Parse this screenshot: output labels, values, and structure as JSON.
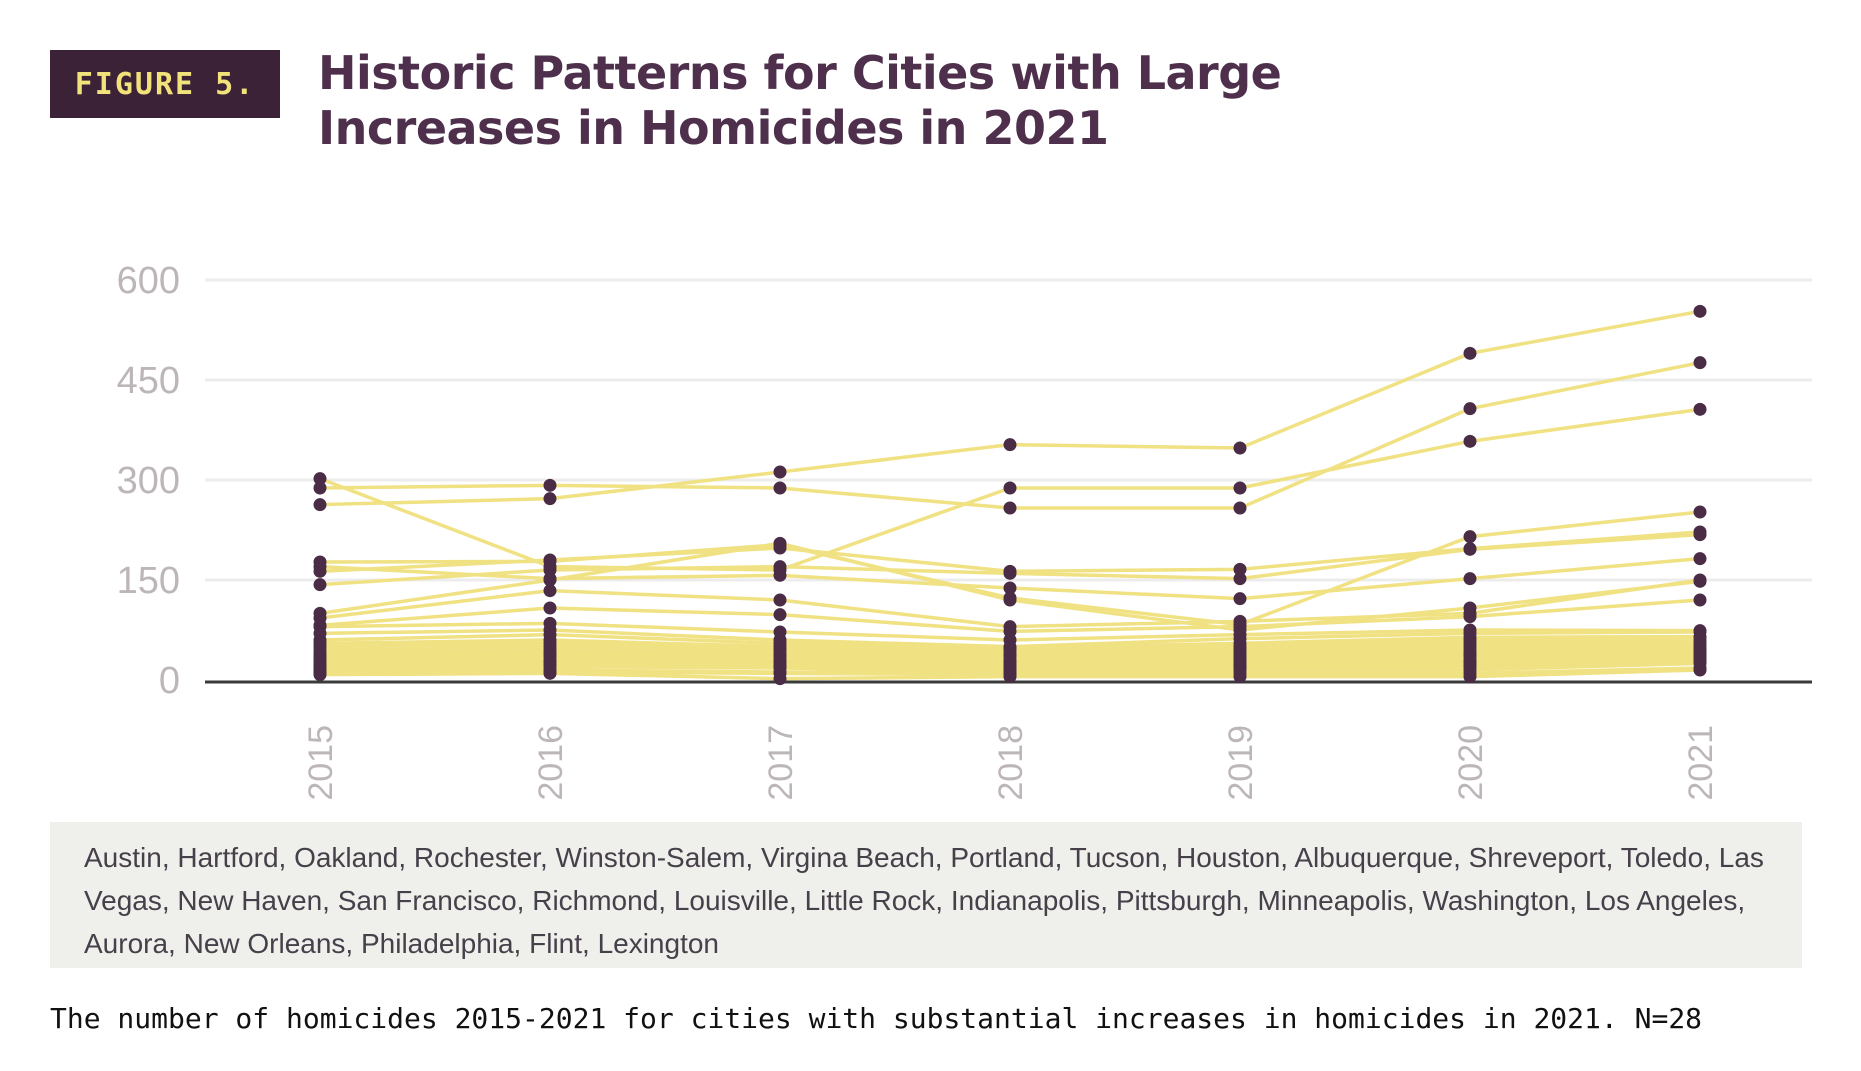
{
  "figure_label": "FIGURE 5.",
  "title": "Historic Patterns for Cities with Large Increases in Homicides in 2021",
  "cities_text": "Austin, Hartford, Oakland, Rochester, Winston-Salem, Virgina Beach, Portland, Tucson, Houston, Albuquerque, Shreveport, Toledo, Las Vegas, New Haven, San Francisco, Richmond, Louisville, Little Rock, Indianapolis, Pittsburgh, Minneapolis, Washington, Los Angeles, Aurora, New Orleans, Philadelphia, Flint, Lexington",
  "caption": "The number of homicides 2015-2021 for cities with substantial increases in homicides in 2021. N=28",
  "colors": {
    "line": "#f0e183",
    "point": "#4a2c46",
    "axis_text": "#bdb6b8",
    "grid": "#ececec",
    "baseline": "#3a3a3a"
  },
  "chart_data": {
    "type": "line",
    "x": [
      "2015",
      "2016",
      "2017",
      "2018",
      "2019",
      "2020",
      "2021"
    ],
    "ylim": [
      0,
      600
    ],
    "yticks": [
      0,
      150,
      300,
      450,
      600
    ],
    "grid": true,
    "series": [
      {
        "values": [
          263,
          272,
          312,
          353,
          348,
          490,
          553
        ]
      },
      {
        "values": [
          288,
          292,
          288,
          258,
          258,
          407,
          476
        ]
      },
      {
        "values": [
          302,
          170,
          165,
          288,
          288,
          358,
          406
        ]
      },
      {
        "values": [
          177,
          178,
          203,
          123,
          83,
          215,
          252
        ]
      },
      {
        "values": [
          163,
          180,
          198,
          163,
          166,
          197,
          222
        ]
      },
      {
        "values": [
          143,
          165,
          170,
          160,
          152,
          196,
          218
        ]
      },
      {
        "values": [
          170,
          152,
          157,
          138,
          122,
          152,
          182
        ]
      },
      {
        "values": [
          100,
          150,
          205,
          120,
          75,
          108,
          148
        ]
      },
      {
        "values": [
          93,
          134,
          120,
          80,
          88,
          100,
          150
        ]
      },
      {
        "values": [
          82,
          108,
          98,
          73,
          80,
          95,
          120
        ]
      },
      {
        "values": [
          80,
          85,
          72,
          60,
          68,
          75,
          74
        ]
      },
      {
        "values": [
          70,
          75,
          60,
          50,
          62,
          70,
          72
        ]
      },
      {
        "values": [
          60,
          68,
          55,
          48,
          55,
          64,
          65
        ]
      },
      {
        "values": [
          55,
          60,
          50,
          45,
          50,
          60,
          60
        ]
      },
      {
        "values": [
          50,
          55,
          48,
          40,
          46,
          55,
          55
        ]
      },
      {
        "values": [
          45,
          50,
          45,
          38,
          42,
          50,
          52
        ]
      },
      {
        "values": [
          40,
          45,
          40,
          35,
          38,
          45,
          48
        ]
      },
      {
        "values": [
          36,
          42,
          38,
          30,
          35,
          40,
          45
        ]
      },
      {
        "values": [
          32,
          38,
          35,
          28,
          32,
          38,
          42
        ]
      },
      {
        "values": [
          28,
          35,
          30,
          25,
          30,
          35,
          40
        ]
      },
      {
        "values": [
          25,
          30,
          28,
          22,
          28,
          30,
          38
        ]
      },
      {
        "values": [
          22,
          28,
          25,
          20,
          25,
          28,
          35
        ]
      },
      {
        "values": [
          20,
          25,
          22,
          18,
          22,
          25,
          32
        ]
      },
      {
        "values": [
          18,
          22,
          20,
          15,
          20,
          22,
          30
        ]
      },
      {
        "values": [
          15,
          20,
          18,
          12,
          18,
          20,
          28
        ]
      },
      {
        "values": [
          12,
          15,
          12,
          10,
          15,
          15,
          25
        ]
      },
      {
        "values": [
          10,
          12,
          10,
          8,
          10,
          10,
          18
        ]
      },
      {
        "values": [
          8,
          10,
          2,
          5,
          5,
          5,
          15
        ]
      }
    ]
  }
}
